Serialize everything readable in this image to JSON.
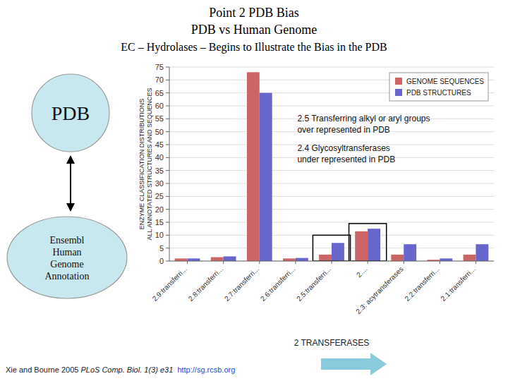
{
  "chart_data": {
    "type": "bar",
    "title": "Point 2 PDB Bias",
    "subtitle": [
      "PDB vs Human Genome",
      "EC – Hydrolases – Begins to Illustrate the Bias in the PDB"
    ],
    "categories": [
      "2.9:transferri...",
      "2.8:transferri...",
      "2.7:transferri...",
      "2.6:transferri...",
      "2.5:transferri...",
      "2....",
      "2.3: acytransferases",
      "2.2:transferri...",
      "2.1:transferri..."
    ],
    "series": [
      {
        "name": "GENOME SEQUENCES",
        "color": "#cc6666",
        "values": [
          1.0,
          1.5,
          73.0,
          1.0,
          2.5,
          11.5,
          2.5,
          0.5,
          2.5
        ]
      },
      {
        "name": "PDB STRUCTURES",
        "color": "#6666cc",
        "values": [
          1.0,
          1.8,
          65.0,
          1.2,
          7.0,
          12.5,
          6.5,
          1.0,
          6.5
        ]
      }
    ],
    "xlabel": "2 TRANSFERASES",
    "ylabel": "ENZYME CLASSIFICATION DISTRIBUTIONS\nALL ANNOTATED STRUCTURES AND SEQUENCES",
    "ylim": [
      0,
      75
    ],
    "yticks": [
      0,
      5,
      10,
      15,
      20,
      25,
      30,
      35,
      40,
      45,
      50,
      55,
      60,
      65,
      70,
      75
    ],
    "grid": true,
    "legend": "top-right",
    "annotations": [
      "2.5 Transferring alkyl or aryl groups",
      "over represented in PDB",
      "2.4 Glycosyltransferases",
      "under represented in PDB"
    ],
    "highlights": [
      {
        "category": "2.5:transferri...",
        "top": 10
      },
      {
        "category": "2....",
        "top": 14.5
      }
    ],
    "diagram_labels": [
      "PDB",
      "Ensembl\nHuman\nGenome\nAnnotation"
    ],
    "citation": [
      "Xie and Bourne 2005 ",
      "PLoS Comp. Biol. 1(3) e31",
      "  http://sg.rcsb.org"
    ]
  }
}
